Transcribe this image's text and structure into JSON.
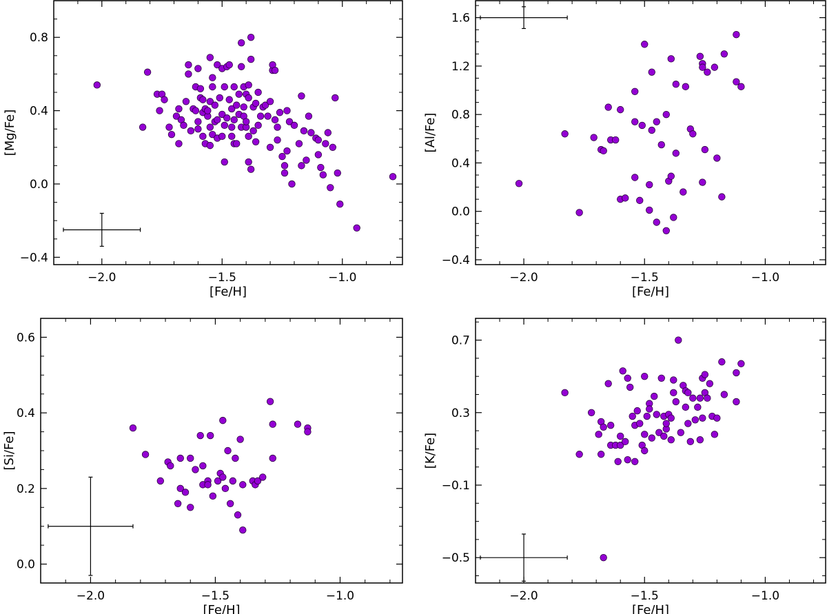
{
  "chart_data": [
    {
      "type": "scatter",
      "title": "",
      "xlabel": "[Fe/H]",
      "ylabel": "[Mg/Fe]",
      "xlim": [
        -2.2,
        -0.75
      ],
      "ylim": [
        -0.44,
        1.0
      ],
      "xticks": [
        -2.0,
        -1.5,
        -1.0
      ],
      "xtick_labels": [
        "−2.0",
        "−1.5",
        "−1.0"
      ],
      "yticks": [
        -0.4,
        0.0,
        0.4,
        0.8
      ],
      "ytick_labels": [
        "−0.4",
        "0.0",
        "0.4",
        "0.8"
      ],
      "grid": false,
      "marker_color": "#9400d3",
      "error_bar": {
        "x": -2.0,
        "y": -0.25,
        "xerr": 0.16,
        "yerr": 0.09
      },
      "points": [
        [
          -2.02,
          0.54
        ],
        [
          -1.83,
          0.31
        ],
        [
          -1.81,
          0.61
        ],
        [
          -1.77,
          0.49
        ],
        [
          -1.76,
          0.4
        ],
        [
          -1.75,
          0.49
        ],
        [
          -1.74,
          0.46
        ],
        [
          -1.72,
          0.31
        ],
        [
          -1.71,
          0.27
        ],
        [
          -1.69,
          0.37
        ],
        [
          -1.68,
          0.41
        ],
        [
          -1.68,
          0.22
        ],
        [
          -1.67,
          0.35
        ],
        [
          -1.66,
          0.32
        ],
        [
          -1.65,
          0.45
        ],
        [
          -1.64,
          0.65
        ],
        [
          -1.64,
          0.6
        ],
        [
          -1.63,
          0.29
        ],
        [
          -1.62,
          0.41
        ],
        [
          -1.61,
          0.53
        ],
        [
          -1.61,
          0.4
        ],
        [
          -1.6,
          0.63
        ],
        [
          -1.6,
          0.34
        ],
        [
          -1.6,
          0.3
        ],
        [
          -1.59,
          0.47
        ],
        [
          -1.59,
          0.52
        ],
        [
          -1.58,
          0.39
        ],
        [
          -1.58,
          0.26
        ],
        [
          -1.58,
          0.46
        ],
        [
          -1.57,
          0.41
        ],
        [
          -1.57,
          0.22
        ],
        [
          -1.56,
          0.37
        ],
        [
          -1.56,
          0.4
        ],
        [
          -1.55,
          0.45
        ],
        [
          -1.55,
          0.69
        ],
        [
          -1.55,
          0.31
        ],
        [
          -1.55,
          0.21
        ],
        [
          -1.54,
          0.27
        ],
        [
          -1.54,
          0.53
        ],
        [
          -1.54,
          0.58
        ],
        [
          -1.53,
          0.34
        ],
        [
          -1.53,
          0.43
        ],
        [
          -1.52,
          0.65
        ],
        [
          -1.52,
          0.35
        ],
        [
          -1.52,
          0.25
        ],
        [
          -1.51,
          0.47
        ],
        [
          -1.5,
          0.38
        ],
        [
          -1.5,
          0.26
        ],
        [
          -1.5,
          0.63
        ],
        [
          -1.49,
          0.53
        ],
        [
          -1.49,
          0.32
        ],
        [
          -1.49,
          0.12
        ],
        [
          -1.48,
          0.64
        ],
        [
          -1.48,
          0.36
        ],
        [
          -1.47,
          0.65
        ],
        [
          -1.47,
          0.46
        ],
        [
          -1.46,
          0.31
        ],
        [
          -1.46,
          0.41
        ],
        [
          -1.46,
          0.26
        ],
        [
          -1.45,
          0.22
        ],
        [
          -1.45,
          0.35
        ],
        [
          -1.45,
          0.53
        ],
        [
          -1.44,
          0.43
        ],
        [
          -1.44,
          0.22
        ],
        [
          -1.43,
          0.38
        ],
        [
          -1.43,
          0.49
        ],
        [
          -1.42,
          0.77
        ],
        [
          -1.42,
          0.31
        ],
        [
          -1.42,
          0.64
        ],
        [
          -1.41,
          0.42
        ],
        [
          -1.41,
          0.53
        ],
        [
          -1.41,
          0.37
        ],
        [
          -1.4,
          0.31
        ],
        [
          -1.4,
          0.49
        ],
        [
          -1.4,
          0.34
        ],
        [
          -1.39,
          0.26
        ],
        [
          -1.39,
          0.54
        ],
        [
          -1.39,
          0.47
        ],
        [
          -1.39,
          0.12
        ],
        [
          -1.38,
          0.08
        ],
        [
          -1.38,
          0.68
        ],
        [
          -1.38,
          0.8
        ],
        [
          -1.37,
          0.42
        ],
        [
          -1.37,
          0.29
        ],
        [
          -1.36,
          0.44
        ],
        [
          -1.36,
          0.23
        ],
        [
          -1.35,
          0.32
        ],
        [
          -1.35,
          0.5
        ],
        [
          -1.34,
          0.37
        ],
        [
          -1.33,
          0.42
        ],
        [
          -1.32,
          0.43
        ],
        [
          -1.31,
          0.37
        ],
        [
          -1.3,
          0.45
        ],
        [
          -1.3,
          0.2
        ],
        [
          -1.29,
          0.62
        ],
        [
          -1.29,
          0.65
        ],
        [
          -1.28,
          0.62
        ],
        [
          -1.28,
          0.35
        ],
        [
          -1.27,
          0.24
        ],
        [
          -1.27,
          0.31
        ],
        [
          -1.26,
          0.39
        ],
        [
          -1.25,
          0.15
        ],
        [
          -1.24,
          0.1
        ],
        [
          -1.24,
          0.06
        ],
        [
          -1.23,
          0.4
        ],
        [
          -1.23,
          0.18
        ],
        [
          -1.22,
          0.34
        ],
        [
          -1.21,
          0.0
        ],
        [
          -1.2,
          0.32
        ],
        [
          -1.18,
          0.22
        ],
        [
          -1.17,
          0.48
        ],
        [
          -1.17,
          0.1
        ],
        [
          -1.16,
          0.29
        ],
        [
          -1.15,
          0.13
        ],
        [
          -1.14,
          0.37
        ],
        [
          -1.13,
          0.28
        ],
        [
          -1.11,
          0.25
        ],
        [
          -1.1,
          0.24
        ],
        [
          -1.1,
          0.16
        ],
        [
          -1.09,
          0.09
        ],
        [
          -1.08,
          0.05
        ],
        [
          -1.07,
          0.22
        ],
        [
          -1.06,
          0.28
        ],
        [
          -1.05,
          -0.02
        ],
        [
          -1.04,
          0.2
        ],
        [
          -1.03,
          0.47
        ],
        [
          -1.02,
          0.06
        ],
        [
          -1.01,
          -0.11
        ],
        [
          -0.94,
          -0.24
        ],
        [
          -0.79,
          0.04
        ]
      ]
    },
    {
      "type": "scatter",
      "title": "",
      "xlabel": "[Fe/H]",
      "ylabel": "[Al/Fe]",
      "xlim": [
        -2.2,
        -0.75
      ],
      "ylim": [
        -0.44,
        1.74
      ],
      "xticks": [
        -2.0,
        -1.5,
        -1.0
      ],
      "xtick_labels": [
        "−2.0",
        "−1.5",
        "−1.0"
      ],
      "yticks": [
        -0.4,
        0.0,
        0.4,
        0.8,
        1.2,
        1.6
      ],
      "ytick_labels": [
        "−0.4",
        "0.0",
        "0.4",
        "0.8",
        "1.2",
        "1.6"
      ],
      "grid": false,
      "marker_color": "#9400d3",
      "error_bar": {
        "x": -2.0,
        "y": 1.6,
        "xerr": 0.18,
        "yerr": 0.09
      },
      "points": [
        [
          -2.02,
          0.23
        ],
        [
          -1.83,
          0.64
        ],
        [
          -1.77,
          -0.01
        ],
        [
          -1.71,
          0.61
        ],
        [
          -1.68,
          0.51
        ],
        [
          -1.67,
          0.5
        ],
        [
          -1.65,
          0.86
        ],
        [
          -1.64,
          0.59
        ],
        [
          -1.62,
          0.59
        ],
        [
          -1.6,
          0.1
        ],
        [
          -1.6,
          0.84
        ],
        [
          -1.58,
          0.11
        ],
        [
          -1.54,
          0.99
        ],
        [
          -1.54,
          0.74
        ],
        [
          -1.54,
          0.28
        ],
        [
          -1.52,
          0.09
        ],
        [
          -1.51,
          0.71
        ],
        [
          -1.5,
          1.38
        ],
        [
          -1.48,
          0.01
        ],
        [
          -1.48,
          0.22
        ],
        [
          -1.47,
          1.15
        ],
        [
          -1.47,
          0.67
        ],
        [
          -1.45,
          -0.09
        ],
        [
          -1.45,
          0.74
        ],
        [
          -1.43,
          0.55
        ],
        [
          -1.41,
          0.8
        ],
        [
          -1.41,
          -0.16
        ],
        [
          -1.4,
          0.25
        ],
        [
          -1.39,
          1.26
        ],
        [
          -1.39,
          0.29
        ],
        [
          -1.38,
          -0.05
        ],
        [
          -1.37,
          0.48
        ],
        [
          -1.37,
          1.05
        ],
        [
          -1.33,
          1.03
        ],
        [
          -1.34,
          0.16
        ],
        [
          -1.31,
          0.68
        ],
        [
          -1.3,
          0.64
        ],
        [
          -1.27,
          1.28
        ],
        [
          -1.26,
          1.22
        ],
        [
          -1.26,
          0.24
        ],
        [
          -1.26,
          1.19
        ],
        [
          -1.25,
          0.51
        ],
        [
          -1.24,
          1.15
        ],
        [
          -1.21,
          1.19
        ],
        [
          -1.2,
          0.44
        ],
        [
          -1.18,
          0.12
        ],
        [
          -1.17,
          1.3
        ],
        [
          -1.12,
          1.46
        ],
        [
          -1.12,
          1.07
        ],
        [
          -1.1,
          1.03
        ]
      ]
    },
    {
      "type": "scatter",
      "title": "",
      "xlabel": "[Fe/H]",
      "ylabel": "[Si/Fe]",
      "xlim": [
        -2.2,
        -0.75
      ],
      "ylim": [
        -0.05,
        0.65
      ],
      "xticks": [
        -2.0,
        -1.5,
        -1.0
      ],
      "xtick_labels": [
        "−2.0",
        "−1.5",
        "−1.0"
      ],
      "yticks": [
        0.0,
        0.2,
        0.4,
        0.6
      ],
      "ytick_labels": [
        "0.0",
        "0.2",
        "0.4",
        "0.6"
      ],
      "grid": false,
      "marker_color": "#9400d3",
      "error_bar": {
        "x": -2.0,
        "y": 0.1,
        "xerr": 0.17,
        "yerr": 0.13
      },
      "points": [
        [
          -1.83,
          0.36
        ],
        [
          -1.78,
          0.29
        ],
        [
          -1.72,
          0.22
        ],
        [
          -1.69,
          0.27
        ],
        [
          -1.68,
          0.26
        ],
        [
          -1.65,
          0.16
        ],
        [
          -1.64,
          0.2
        ],
        [
          -1.64,
          0.28
        ],
        [
          -1.62,
          0.19
        ],
        [
          -1.6,
          0.15
        ],
        [
          -1.6,
          0.28
        ],
        [
          -1.58,
          0.25
        ],
        [
          -1.56,
          0.34
        ],
        [
          -1.55,
          0.26
        ],
        [
          -1.55,
          0.21
        ],
        [
          -1.53,
          0.22
        ],
        [
          -1.53,
          0.21
        ],
        [
          -1.52,
          0.34
        ],
        [
          -1.51,
          0.18
        ],
        [
          -1.49,
          0.22
        ],
        [
          -1.48,
          0.24
        ],
        [
          -1.47,
          0.23
        ],
        [
          -1.47,
          0.38
        ],
        [
          -1.46,
          0.2
        ],
        [
          -1.45,
          0.3
        ],
        [
          -1.44,
          0.16
        ],
        [
          -1.43,
          0.22
        ],
        [
          -1.42,
          0.28
        ],
        [
          -1.41,
          0.13
        ],
        [
          -1.4,
          0.33
        ],
        [
          -1.39,
          0.09
        ],
        [
          -1.39,
          0.21
        ],
        [
          -1.35,
          0.22
        ],
        [
          -1.34,
          0.21
        ],
        [
          -1.33,
          0.22
        ],
        [
          -1.31,
          0.23
        ],
        [
          -1.28,
          0.43
        ],
        [
          -1.27,
          0.37
        ],
        [
          -1.27,
          0.28
        ],
        [
          -1.17,
          0.37
        ],
        [
          -1.13,
          0.36
        ],
        [
          -1.13,
          0.35
        ]
      ]
    },
    {
      "type": "scatter",
      "title": "",
      "xlabel": "[Fe/H]",
      "ylabel": "[K/Fe]",
      "xlim": [
        -2.2,
        -0.75
      ],
      "ylim": [
        -0.64,
        0.82
      ],
      "xticks": [
        -2.0,
        -1.5,
        -1.0
      ],
      "xtick_labels": [
        "−2.0",
        "−1.5",
        "−1.0"
      ],
      "yticks": [
        -0.5,
        -0.1,
        0.3,
        0.7
      ],
      "ytick_labels": [
        "−0.5",
        "−0.1",
        "0.3",
        "0.7"
      ],
      "grid": false,
      "marker_color": "#9400d3",
      "error_bar": {
        "x": -2.0,
        "y": -0.5,
        "xerr": 0.18,
        "yerr": 0.13
      },
      "points": [
        [
          -1.83,
          0.41
        ],
        [
          -1.77,
          0.07
        ],
        [
          -1.72,
          0.3
        ],
        [
          -1.69,
          0.18
        ],
        [
          -1.68,
          0.07
        ],
        [
          -1.68,
          0.25
        ],
        [
          -1.67,
          -0.5
        ],
        [
          -1.67,
          0.22
        ],
        [
          -1.65,
          0.46
        ],
        [
          -1.64,
          0.12
        ],
        [
          -1.64,
          0.23
        ],
        [
          -1.62,
          0.12
        ],
        [
          -1.61,
          0.03
        ],
        [
          -1.6,
          0.12
        ],
        [
          -1.6,
          0.17
        ],
        [
          -1.59,
          0.53
        ],
        [
          -1.58,
          0.14
        ],
        [
          -1.57,
          0.04
        ],
        [
          -1.57,
          0.49
        ],
        [
          -1.56,
          0.44
        ],
        [
          -1.55,
          0.28
        ],
        [
          -1.54,
          0.03
        ],
        [
          -1.54,
          0.23
        ],
        [
          -1.53,
          0.31
        ],
        [
          -1.52,
          0.24
        ],
        [
          -1.51,
          0.12
        ],
        [
          -1.5,
          0.18
        ],
        [
          -1.5,
          0.5
        ],
        [
          -1.5,
          0.09
        ],
        [
          -1.49,
          0.28
        ],
        [
          -1.48,
          0.35
        ],
        [
          -1.48,
          0.32
        ],
        [
          -1.47,
          0.16
        ],
        [
          -1.46,
          0.39
        ],
        [
          -1.45,
          0.29
        ],
        [
          -1.44,
          0.19
        ],
        [
          -1.43,
          0.49
        ],
        [
          -1.42,
          0.17
        ],
        [
          -1.42,
          0.28
        ],
        [
          -1.41,
          0.21
        ],
        [
          -1.41,
          0.24
        ],
        [
          -1.4,
          0.29
        ],
        [
          -1.39,
          0.27
        ],
        [
          -1.39,
          0.15
        ],
        [
          -1.38,
          0.48
        ],
        [
          -1.38,
          0.41
        ],
        [
          -1.37,
          0.36
        ],
        [
          -1.36,
          0.7
        ],
        [
          -1.35,
          0.19
        ],
        [
          -1.34,
          0.45
        ],
        [
          -1.33,
          0.42
        ],
        [
          -1.33,
          0.33
        ],
        [
          -1.32,
          0.24
        ],
        [
          -1.32,
          0.41
        ],
        [
          -1.31,
          0.14
        ],
        [
          -1.3,
          0.38
        ],
        [
          -1.29,
          0.26
        ],
        [
          -1.28,
          0.33
        ],
        [
          -1.27,
          0.15
        ],
        [
          -1.27,
          0.38
        ],
        [
          -1.26,
          0.49
        ],
        [
          -1.26,
          0.27
        ],
        [
          -1.25,
          0.51
        ],
        [
          -1.25,
          0.41
        ],
        [
          -1.24,
          0.38
        ],
        [
          -1.23,
          0.46
        ],
        [
          -1.22,
          0.28
        ],
        [
          -1.21,
          0.18
        ],
        [
          -1.2,
          0.27
        ],
        [
          -1.18,
          0.58
        ],
        [
          -1.17,
          0.4
        ],
        [
          -1.12,
          0.36
        ],
        [
          -1.12,
          0.52
        ],
        [
          -1.1,
          0.57
        ]
      ]
    }
  ]
}
